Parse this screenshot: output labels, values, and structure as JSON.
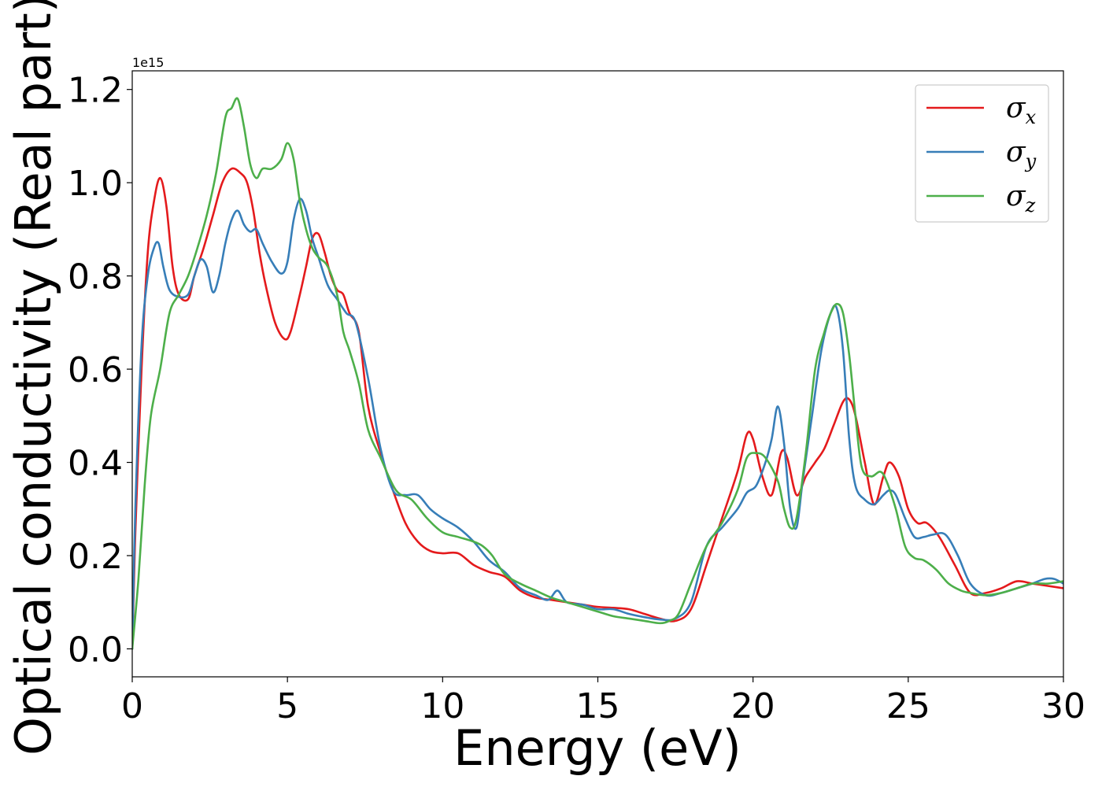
{
  "chart_data": {
    "type": "line",
    "title": "",
    "xlabel": "Energy (eV)",
    "ylabel": "Optical conductivity (Real part)",
    "y_offset_text": "1e15",
    "xlim": [
      0,
      30
    ],
    "ylim": [
      -0.06,
      1.24
    ],
    "xticks": [
      0,
      5,
      10,
      15,
      20,
      25,
      30
    ],
    "xtick_labels": [
      "0",
      "5",
      "10",
      "15",
      "20",
      "25",
      "30"
    ],
    "yticks": [
      0.0,
      0.2,
      0.4,
      0.6,
      0.8,
      1.0,
      1.2
    ],
    "ytick_labels": [
      "0.0",
      "0.2",
      "0.4",
      "0.6",
      "0.8",
      "1.0",
      "1.2"
    ],
    "grid": false,
    "legend_position": "top-right",
    "series": [
      {
        "name": "σx",
        "legend_symbol": "σ",
        "legend_sub": "x",
        "color": "#e41a1c",
        "x": [
          0,
          0.1,
          0.3,
          0.5,
          0.7,
          0.9,
          1.1,
          1.3,
          1.5,
          1.8,
          2.0,
          2.3,
          2.6,
          2.9,
          3.2,
          3.5,
          3.7,
          3.9,
          4.1,
          4.3,
          4.6,
          4.9,
          5.1,
          5.4,
          5.6,
          5.8,
          6.0,
          6.2,
          6.4,
          6.6,
          6.8,
          7.0,
          7.3,
          7.6,
          8.0,
          8.4,
          8.8,
          9.2,
          9.6,
          10.0,
          10.5,
          11.0,
          11.5,
          12.0,
          12.5,
          13.0,
          13.5,
          14.0,
          14.5,
          15.0,
          15.5,
          16.0,
          16.5,
          17.0,
          17.5,
          18.0,
          18.5,
          19.0,
          19.5,
          19.8,
          20.0,
          20.3,
          20.6,
          20.9,
          21.1,
          21.4,
          21.7,
          22.0,
          22.3,
          22.6,
          22.9,
          23.1,
          23.3,
          23.6,
          23.9,
          24.2,
          24.4,
          24.7,
          25.0,
          25.3,
          25.6,
          26.0,
          26.5,
          27.0,
          27.5,
          28.0,
          28.5,
          29.0,
          29.5,
          30.0
        ],
        "y": [
          0.0,
          0.25,
          0.6,
          0.85,
          0.96,
          1.01,
          0.95,
          0.82,
          0.76,
          0.75,
          0.8,
          0.86,
          0.93,
          1.0,
          1.03,
          1.02,
          1.0,
          0.94,
          0.85,
          0.78,
          0.7,
          0.665,
          0.68,
          0.76,
          0.82,
          0.88,
          0.89,
          0.85,
          0.8,
          0.77,
          0.76,
          0.72,
          0.68,
          0.52,
          0.42,
          0.34,
          0.27,
          0.23,
          0.21,
          0.205,
          0.205,
          0.18,
          0.165,
          0.155,
          0.125,
          0.11,
          0.105,
          0.1,
          0.095,
          0.09,
          0.088,
          0.085,
          0.075,
          0.065,
          0.06,
          0.085,
          0.18,
          0.28,
          0.38,
          0.46,
          0.45,
          0.37,
          0.33,
          0.42,
          0.41,
          0.33,
          0.37,
          0.4,
          0.43,
          0.48,
          0.53,
          0.535,
          0.5,
          0.4,
          0.31,
          0.37,
          0.4,
          0.37,
          0.3,
          0.27,
          0.27,
          0.24,
          0.18,
          0.12,
          0.12,
          0.13,
          0.145,
          0.14,
          0.135,
          0.13
        ]
      },
      {
        "name": "σy",
        "legend_symbol": "σ",
        "legend_sub": "y",
        "color": "#377eb8",
        "x": [
          0,
          0.1,
          0.3,
          0.5,
          0.7,
          0.85,
          1.0,
          1.2,
          1.5,
          1.8,
          2.0,
          2.2,
          2.4,
          2.6,
          2.8,
          3.0,
          3.2,
          3.4,
          3.6,
          3.8,
          4.0,
          4.2,
          4.5,
          4.8,
          5.0,
          5.2,
          5.4,
          5.6,
          5.8,
          6.0,
          6.3,
          6.6,
          6.9,
          7.2,
          7.6,
          8.0,
          8.4,
          8.8,
          9.2,
          9.6,
          10.0,
          10.5,
          11.0,
          11.5,
          12.0,
          12.5,
          13.0,
          13.4,
          13.7,
          14.0,
          14.5,
          15.0,
          15.5,
          16.0,
          16.5,
          17.0,
          17.5,
          18.0,
          18.5,
          19.0,
          19.5,
          19.8,
          20.1,
          20.4,
          20.6,
          20.8,
          21.0,
          21.2,
          21.4,
          21.6,
          21.9,
          22.2,
          22.5,
          22.7,
          22.9,
          23.1,
          23.3,
          23.6,
          23.9,
          24.2,
          24.4,
          24.6,
          24.9,
          25.2,
          25.5,
          25.8,
          26.2,
          26.6,
          27.0,
          27.5,
          28.0,
          28.5,
          29.0,
          29.4,
          29.7,
          30.0
        ],
        "y": [
          0.0,
          0.3,
          0.65,
          0.8,
          0.86,
          0.87,
          0.82,
          0.77,
          0.755,
          0.76,
          0.8,
          0.835,
          0.82,
          0.765,
          0.8,
          0.87,
          0.92,
          0.94,
          0.91,
          0.895,
          0.9,
          0.87,
          0.83,
          0.805,
          0.83,
          0.92,
          0.965,
          0.94,
          0.88,
          0.84,
          0.78,
          0.75,
          0.72,
          0.7,
          0.58,
          0.43,
          0.34,
          0.33,
          0.33,
          0.3,
          0.28,
          0.26,
          0.23,
          0.19,
          0.165,
          0.13,
          0.115,
          0.105,
          0.125,
          0.1,
          0.095,
          0.085,
          0.085,
          0.075,
          0.068,
          0.063,
          0.065,
          0.1,
          0.22,
          0.26,
          0.3,
          0.335,
          0.35,
          0.4,
          0.45,
          0.52,
          0.44,
          0.3,
          0.26,
          0.36,
          0.5,
          0.64,
          0.72,
          0.73,
          0.64,
          0.45,
          0.35,
          0.32,
          0.31,
          0.33,
          0.34,
          0.33,
          0.28,
          0.24,
          0.24,
          0.245,
          0.245,
          0.2,
          0.14,
          0.115,
          0.12,
          0.13,
          0.14,
          0.15,
          0.15,
          0.14
        ]
      },
      {
        "name": "σz",
        "legend_symbol": "σ",
        "legend_sub": "z",
        "color": "#4daf4a",
        "x": [
          0,
          0.2,
          0.4,
          0.6,
          0.9,
          1.2,
          1.5,
          1.8,
          2.1,
          2.4,
          2.7,
          3.0,
          3.2,
          3.4,
          3.6,
          3.8,
          4.0,
          4.2,
          4.5,
          4.8,
          5.0,
          5.2,
          5.4,
          5.6,
          5.8,
          6.0,
          6.3,
          6.6,
          6.8,
          7.0,
          7.3,
          7.6,
          8.0,
          8.5,
          9.0,
          9.5,
          10.0,
          10.5,
          11.0,
          11.3,
          11.6,
          12.0,
          12.5,
          13.0,
          13.5,
          14.0,
          14.5,
          15.0,
          15.5,
          16.0,
          16.5,
          17.0,
          17.3,
          17.6,
          18.0,
          18.5,
          19.0,
          19.5,
          19.8,
          20.1,
          20.4,
          20.8,
          21.0,
          21.2,
          21.4,
          21.7,
          22.0,
          22.3,
          22.5,
          22.7,
          22.9,
          23.1,
          23.3,
          23.5,
          23.8,
          24.1,
          24.3,
          24.6,
          24.9,
          25.2,
          25.5,
          25.9,
          26.3,
          26.7,
          27.0,
          27.5,
          28.0,
          28.5,
          29.0,
          29.5,
          30.0
        ],
        "y": [
          0.0,
          0.15,
          0.35,
          0.5,
          0.6,
          0.72,
          0.76,
          0.8,
          0.86,
          0.93,
          1.02,
          1.14,
          1.16,
          1.18,
          1.12,
          1.04,
          1.01,
          1.03,
          1.03,
          1.05,
          1.085,
          1.05,
          0.96,
          0.9,
          0.86,
          0.84,
          0.82,
          0.76,
          0.68,
          0.64,
          0.57,
          0.47,
          0.41,
          0.34,
          0.32,
          0.28,
          0.25,
          0.24,
          0.23,
          0.22,
          0.2,
          0.16,
          0.14,
          0.125,
          0.11,
          0.1,
          0.09,
          0.08,
          0.07,
          0.065,
          0.06,
          0.055,
          0.06,
          0.075,
          0.14,
          0.22,
          0.27,
          0.34,
          0.41,
          0.42,
          0.41,
          0.36,
          0.3,
          0.26,
          0.28,
          0.42,
          0.6,
          0.68,
          0.72,
          0.74,
          0.72,
          0.63,
          0.5,
          0.39,
          0.37,
          0.38,
          0.36,
          0.3,
          0.22,
          0.195,
          0.19,
          0.17,
          0.14,
          0.125,
          0.12,
          0.115,
          0.12,
          0.13,
          0.14,
          0.14,
          0.145
        ]
      }
    ]
  }
}
